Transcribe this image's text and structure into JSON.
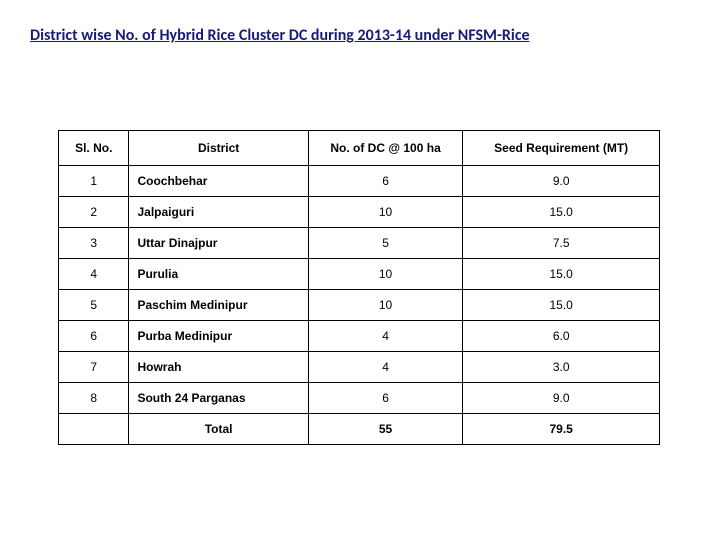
{
  "title": "District wise No. of  Hybrid Rice  Cluster DC during 2013-14 under NFSM-Rice",
  "columns": [
    "Sl. No.",
    "District",
    "No. of DC @ 100 ha",
    "Seed Requirement (MT)"
  ],
  "rows": [
    {
      "sl": "1",
      "district": "Coochbehar",
      "dc": "6",
      "seed": "9.0"
    },
    {
      "sl": "2",
      "district": "Jalpaiguri",
      "dc": "10",
      "seed": "15.0"
    },
    {
      "sl": "3",
      "district": "Uttar Dinajpur",
      "dc": "5",
      "seed": "7.5"
    },
    {
      "sl": "4",
      "district": "Purulia",
      "dc": "10",
      "seed": "15.0"
    },
    {
      "sl": "5",
      "district": "Paschim Medinipur",
      "dc": "10",
      "seed": "15.0"
    },
    {
      "sl": "6",
      "district": "Purba Medinipur",
      "dc": "4",
      "seed": "6.0"
    },
    {
      "sl": "7",
      "district": "Howrah",
      "dc": "4",
      "seed": "3.0"
    },
    {
      "sl": "8",
      "district": "South 24 Parganas",
      "dc": "6",
      "seed": "9.0"
    }
  ],
  "total": {
    "label": "Total",
    "dc": "55",
    "seed": "79.5"
  }
}
